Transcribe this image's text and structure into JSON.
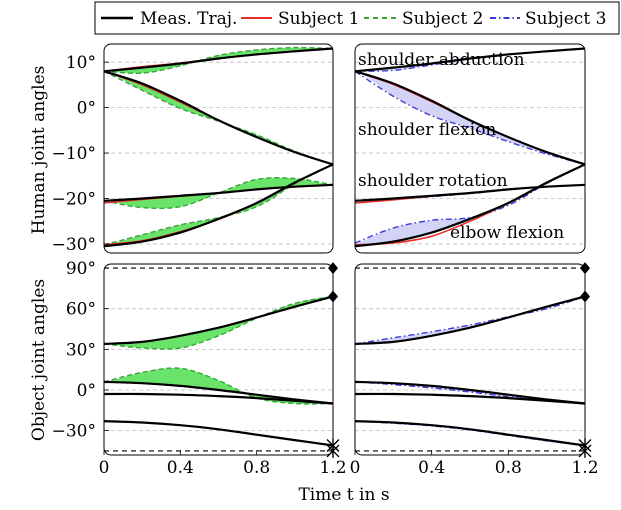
{
  "legend": {
    "entries": [
      {
        "label": "Meas. Traj.",
        "color": "#000000",
        "dash": "solid"
      },
      {
        "label": "Subject 1",
        "color": "#e8302a",
        "dash": "solid"
      },
      {
        "label": "Subject 2",
        "color": "#3aa43a",
        "dash": "dashed"
      },
      {
        "label": "Subject 3",
        "color": "#3b3be0",
        "dash": "dashdot"
      }
    ],
    "placement": "top"
  },
  "labels": {
    "ylabel_top": "Human joint angles",
    "ylabel_bottom": "Object joint angles",
    "xlabel": "Time t in s"
  },
  "colors": {
    "meas": "#000000",
    "subject1": "#e8302a",
    "subject2": "#3aa43a",
    "subject3": "#3b3be0",
    "fill2": "#59e059",
    "fill3": "#c8c8f2",
    "grid": "#bdbdbd"
  },
  "chart_data": [
    {
      "panel": "human-left",
      "type": "line",
      "x": [
        0,
        0.2,
        0.4,
        0.6,
        0.8,
        1.0,
        1.2
      ],
      "xlim": [
        0,
        1.2
      ],
      "ylim": [
        -32,
        14
      ],
      "yticks": [
        "10°",
        "0°",
        "−10°",
        "−20°",
        "−30°"
      ],
      "ytick_values": [
        10,
        0,
        -10,
        -20,
        -30
      ],
      "grid": "horizontal dashed",
      "series": [
        {
          "name": "Meas. Traj.",
          "values": [
            [
              8,
              8.8,
              9.7,
              10.8,
              11.7,
              12.4,
              13
            ],
            [
              8,
              5.3,
              1.5,
              -2.8,
              -6.5,
              -9.8,
              -12.5
            ],
            [
              -20.5,
              -20,
              -19.4,
              -18.8,
              -18,
              -17.4,
              -17
            ],
            [
              -30.5,
              -29.5,
              -27.5,
              -24.5,
              -21,
              -16.5,
              -12.5
            ]
          ]
        },
        {
          "name": "Subject 1",
          "values": [
            [
              8,
              9,
              9.8,
              10.8,
              11.7,
              12.4,
              13
            ],
            [
              8,
              5,
              1.2,
              -2.8,
              -6.5,
              -9.8,
              -12.5
            ],
            [
              -21,
              -20.2,
              -19.5,
              -18.8,
              -18,
              -17.4,
              -17
            ],
            [
              -30.2,
              -29.3,
              -27.3,
              -24.6,
              -21,
              -16.6,
              -12.5
            ]
          ]
        },
        {
          "name": "Subject 2",
          "values": [
            [
              8,
              7.6,
              9.2,
              11.5,
              12.7,
              13.2,
              13
            ],
            [
              8,
              3.8,
              -0.2,
              -3,
              -6,
              -9.6,
              -12.5
            ],
            [
              -20.5,
              -22,
              -21.8,
              -18.8,
              -15.8,
              -15.6,
              -17
            ],
            [
              -30.2,
              -28,
              -25.8,
              -24.2,
              -21.8,
              -16.8,
              -12.5
            ]
          ]
        },
        {
          "name": "Subject 3",
          "values": [
            [
              8,
              8.8,
              9.7,
              10.8,
              11.7,
              12.4,
              13
            ],
            [
              8,
              5.3,
              1.5,
              -2.8,
              -6.5,
              -9.8,
              -12.5
            ],
            [
              -20.5,
              -20,
              -19.4,
              -18.8,
              -18,
              -17.4,
              -17
            ],
            [
              -30.5,
              -29.5,
              -27.5,
              -24.5,
              -21,
              -16.5,
              -12.5
            ]
          ]
        }
      ]
    },
    {
      "panel": "human-right",
      "type": "line",
      "x": [
        0,
        0.2,
        0.4,
        0.6,
        0.8,
        1.0,
        1.2
      ],
      "xlim": [
        0,
        1.2
      ],
      "ylim": [
        -32,
        14
      ],
      "grid": "horizontal dashed",
      "annotations": [
        "shoulder abduction",
        "shoulder flexion",
        "shoulder rotation",
        "elbow flexion"
      ],
      "series": [
        {
          "name": "Meas. Traj.",
          "values": [
            [
              8,
              8.8,
              9.7,
              10.8,
              11.7,
              12.4,
              13
            ],
            [
              8,
              5.3,
              1.5,
              -2.8,
              -6.5,
              -9.8,
              -12.5
            ],
            [
              -20.5,
              -20,
              -19.4,
              -18.8,
              -18,
              -17.4,
              -17
            ],
            [
              -30.5,
              -29.5,
              -27.5,
              -24.5,
              -21,
              -16.5,
              -12.5
            ]
          ]
        },
        {
          "name": "Subject 1",
          "values": [
            [
              8,
              8.8,
              9.7,
              10.8,
              11.7,
              12.4,
              13
            ],
            [
              8,
              5.1,
              1.3,
              -2.8,
              -6.5,
              -9.8,
              -12.5
            ],
            [
              -21,
              -20.3,
              -19.5,
              -18.8,
              -18,
              -17.4,
              -17
            ],
            [
              -30.2,
              -29.8,
              -28.3,
              -25,
              -21,
              -16.6,
              -12.5
            ]
          ]
        },
        {
          "name": "Subject 2",
          "values": [
            [
              8,
              8.8,
              9.7,
              10.8,
              11.7,
              12.4,
              13
            ],
            [
              8,
              5.3,
              1.5,
              -2.8,
              -6.5,
              -9.8,
              -12.5
            ],
            [
              -20.5,
              -20,
              -19.4,
              -18.8,
              -18,
              -17.4,
              -17
            ],
            [
              -30.5,
              -29.5,
              -27.5,
              -24.5,
              -21,
              -16.5,
              -12.5
            ]
          ]
        },
        {
          "name": "Subject 3",
          "values": [
            [
              8,
              8.2,
              9.4,
              10.7,
              11.7,
              12.4,
              13
            ],
            [
              8,
              2.5,
              -1.8,
              -4.5,
              -7.5,
              -10.2,
              -12.5
            ],
            [
              -20.5,
              -20.2,
              -19.6,
              -18.9,
              -18.1,
              -17.4,
              -17
            ],
            [
              -29.8,
              -26.5,
              -24.8,
              -24.2,
              -21.5,
              -16.7,
              -12.5
            ]
          ]
        }
      ]
    },
    {
      "panel": "object-left",
      "type": "line",
      "x": [
        0,
        0.2,
        0.4,
        0.6,
        0.8,
        1.0,
        1.2
      ],
      "xlim": [
        0,
        1.2
      ],
      "ylim": [
        -48,
        93
      ],
      "xticks": [
        "0",
        "0.4",
        "0.8",
        "1.2"
      ],
      "xtick_values": [
        0,
        0.4,
        0.8,
        1.2
      ],
      "yticks": [
        "90°",
        "60°",
        "30°",
        "0°",
        "−30°"
      ],
      "ytick_values": [
        90,
        60,
        30,
        0,
        -30
      ],
      "limits": {
        "upper": 90,
        "lower": -45
      },
      "series": [
        {
          "name": "Meas. Traj.",
          "values": [
            [
              34,
              35.5,
              40,
              46,
              53.5,
              61.5,
              69
            ],
            [
              6,
              5,
              3,
              0,
              -3.5,
              -7,
              -10
            ],
            [
              -3,
              -3,
              -3.5,
              -4.5,
              -6,
              -8,
              -10
            ],
            [
              -23,
              -24,
              -26,
              -29,
              -33,
              -37,
              -41
            ]
          ]
        },
        {
          "name": "Subject 1",
          "values": [
            [
              34,
              35.5,
              40,
              46,
              53.5,
              61.5,
              69
            ],
            [
              6,
              5,
              3,
              0,
              -3.5,
              -7,
              -10
            ],
            [
              -3,
              -3,
              -3.5,
              -4.5,
              -6,
              -8,
              -10
            ],
            [
              -23,
              -24,
              -26,
              -29,
              -33,
              -37,
              -41
            ]
          ]
        },
        {
          "name": "Subject 2",
          "values": [
            [
              34,
              31,
              31,
              40,
              53,
              64,
              69
            ],
            [
              6,
              13,
              16,
              7,
              -6,
              -10,
              -10
            ],
            [
              -3,
              -3,
              -3.5,
              -4.5,
              -6,
              -8,
              -10
            ],
            [
              -23,
              -24,
              -26,
              -29,
              -33,
              -37,
              -41
            ]
          ]
        },
        {
          "name": "Subject 3",
          "values": [
            [
              34,
              35.5,
              40,
              46,
              53.5,
              61.5,
              69
            ],
            [
              6,
              5,
              3,
              0,
              -3.5,
              -7,
              -10
            ],
            [
              -3,
              -3,
              -3.5,
              -4.5,
              -6,
              -8,
              -10
            ],
            [
              -23,
              -24,
              -26,
              -29,
              -33,
              -37,
              -41
            ]
          ]
        }
      ]
    },
    {
      "panel": "object-right",
      "type": "line",
      "x": [
        0,
        0.2,
        0.4,
        0.6,
        0.8,
        1.0,
        1.2
      ],
      "xlim": [
        0,
        1.2
      ],
      "ylim": [
        -48,
        93
      ],
      "xticks": [
        "0",
        "0.4",
        "0.8",
        "1.2"
      ],
      "xtick_values": [
        0,
        0.4,
        0.8,
        1.2
      ],
      "limits": {
        "upper": 90,
        "lower": -45
      },
      "series": [
        {
          "name": "Meas. Traj.",
          "values": [
            [
              34,
              35.5,
              40,
              46,
              53.5,
              61.5,
              69
            ],
            [
              6,
              5,
              3,
              0,
              -3.5,
              -7,
              -10
            ],
            [
              -3,
              -3,
              -3.5,
              -4.5,
              -6,
              -8,
              -10
            ],
            [
              -23,
              -24,
              -26,
              -29,
              -33,
              -37,
              -41
            ]
          ]
        },
        {
          "name": "Subject 1",
          "values": [
            [
              34,
              35.5,
              40,
              46,
              53.5,
              61.5,
              69
            ],
            [
              6,
              5,
              3,
              0,
              -3.5,
              -7,
              -10
            ],
            [
              -3,
              -3,
              -3.5,
              -4.5,
              -6,
              -8,
              -10
            ],
            [
              -23,
              -24,
              -26,
              -29,
              -33,
              -37,
              -41
            ]
          ]
        },
        {
          "name": "Subject 2",
          "values": [
            [
              34,
              35.5,
              40,
              46,
              53.5,
              61.5,
              69
            ],
            [
              6,
              5,
              3,
              0,
              -3.5,
              -7,
              -10
            ],
            [
              -3,
              -3,
              -3.5,
              -4.5,
              -6,
              -8,
              -10
            ],
            [
              -23,
              -24,
              -26,
              -29,
              -33,
              -37,
              -41
            ]
          ]
        },
        {
          "name": "Subject 3",
          "values": [
            [
              34,
              38.5,
              43,
              48,
              54,
              60,
              69
            ],
            [
              6,
              4,
              1.5,
              -1.5,
              -5,
              -8,
              -10
            ],
            [
              -3,
              -3,
              -3.5,
              -4.5,
              -6,
              -8,
              -10
            ],
            [
              -23,
              -24.5,
              -26.5,
              -29.5,
              -33.5,
              -37.5,
              -41
            ]
          ]
        }
      ]
    }
  ]
}
